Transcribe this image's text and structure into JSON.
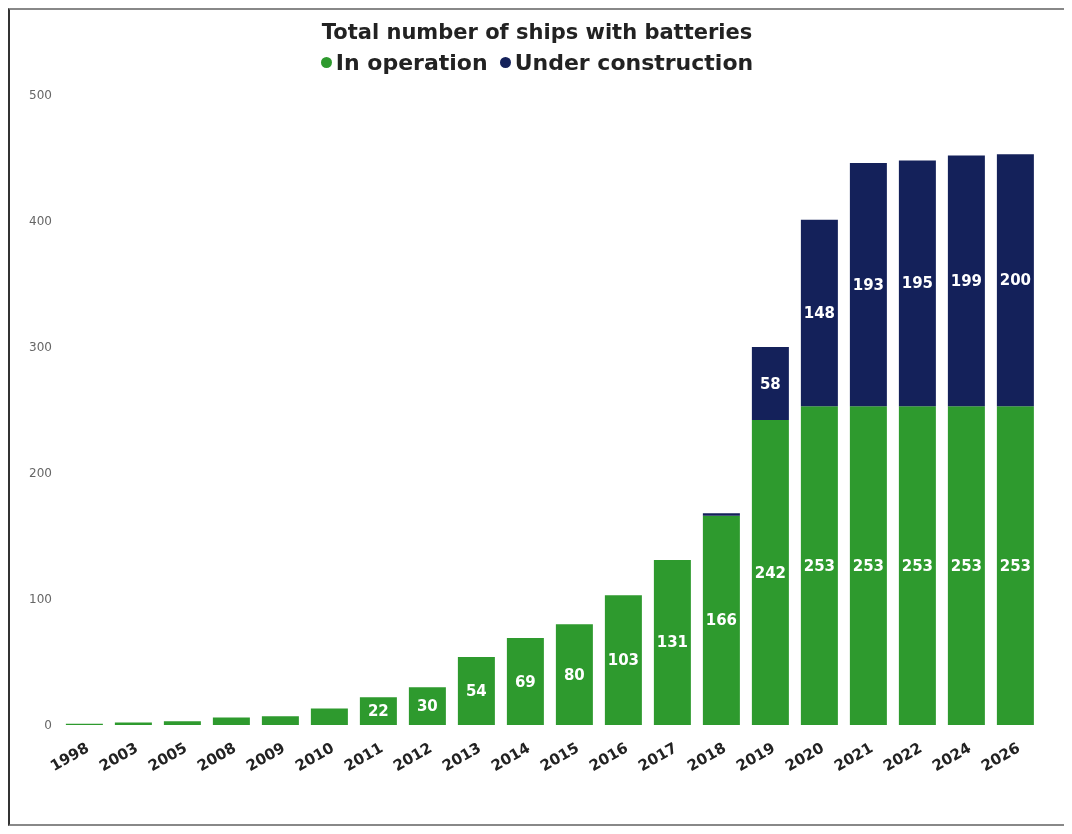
{
  "chart_data": {
    "type": "bar",
    "title": "Total number of ships with batteries",
    "stacked": true,
    "legend": "top",
    "grid": false,
    "categories": [
      "1998",
      "2003",
      "2005",
      "2008",
      "2009",
      "2010",
      "2011",
      "2012",
      "2013",
      "2014",
      "2015",
      "2016",
      "2017",
      "2018",
      "2019",
      "2020",
      "2021",
      "2022",
      "2024",
      "2026"
    ],
    "series": [
      {
        "name": "In operation",
        "color": "#2e9a2e",
        "values": [
          1,
          2,
          3,
          6,
          7,
          13,
          22,
          30,
          54,
          69,
          80,
          103,
          131,
          166,
          242,
          253,
          253,
          253,
          253,
          253
        ],
        "value_labels": [
          null,
          null,
          null,
          null,
          null,
          null,
          "22",
          "30",
          "54",
          "69",
          "80",
          "103",
          "131",
          "166",
          "242",
          "253",
          "253",
          "253",
          "253",
          "253"
        ]
      },
      {
        "name": "Under construction",
        "color": "#14215a",
        "values": [
          null,
          null,
          null,
          null,
          null,
          null,
          null,
          null,
          null,
          null,
          null,
          null,
          null,
          2,
          58,
          148,
          193,
          195,
          199,
          200
        ],
        "value_labels": [
          null,
          null,
          null,
          null,
          null,
          null,
          null,
          null,
          null,
          null,
          null,
          null,
          null,
          null,
          "58",
          "148",
          "193",
          "195",
          "199",
          "200"
        ]
      }
    ],
    "ylim": [
      0,
      500
    ],
    "yticks": [
      0,
      100,
      200,
      300,
      400,
      500
    ]
  }
}
